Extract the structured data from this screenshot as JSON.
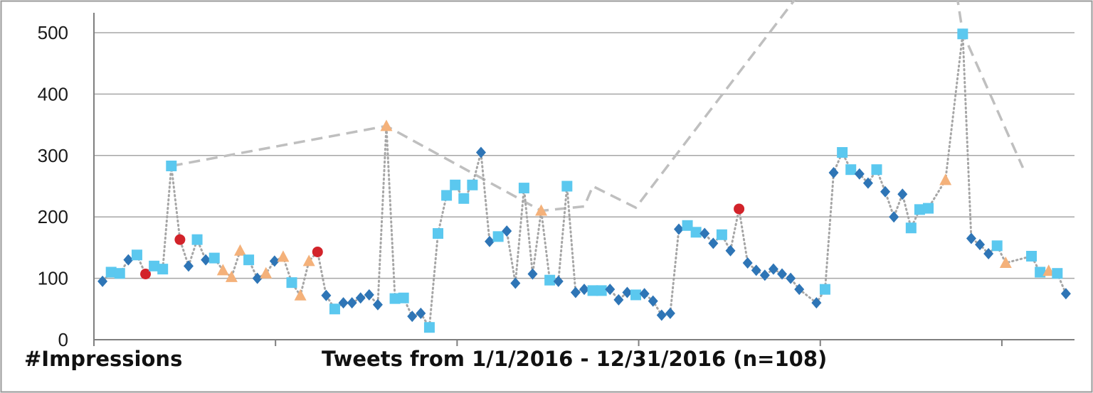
{
  "chart_data": {
    "type": "line",
    "ylabel": "#Impressions",
    "xlabel": "Tweets from 1/1/2016 - 12/31/2016 (n=108)",
    "ylim": [
      0,
      550
    ],
    "yticks": [
      0,
      100,
      200,
      300,
      400,
      500
    ],
    "grid": "horizontal",
    "colors": {
      "diamond": "#2e75b6",
      "square": "#5bc8ef",
      "triangle": "#f4b17a",
      "circle": "#d2232a",
      "dotted_line": "#a6a6a6",
      "dashed_line": "#bfbfbf",
      "grid": "#a6a6a6",
      "axis": "#7f7f7f"
    },
    "series": [
      {
        "marker": "square",
        "points": [
          [
            1,
            110
          ],
          [
            2,
            108
          ],
          [
            4,
            138
          ],
          [
            6,
            120
          ],
          [
            7,
            115
          ],
          [
            8,
            283
          ],
          [
            11,
            163
          ],
          [
            13,
            133
          ],
          [
            17,
            130
          ],
          [
            22,
            93
          ],
          [
            27,
            50
          ],
          [
            34,
            67
          ],
          [
            35,
            68
          ],
          [
            38,
            20
          ],
          [
            39,
            173
          ],
          [
            40,
            235
          ],
          [
            41,
            252
          ],
          [
            42,
            230
          ],
          [
            43,
            252
          ],
          [
            46,
            168
          ],
          [
            49,
            247
          ],
          [
            52,
            97
          ],
          [
            54,
            250
          ],
          [
            57,
            80
          ],
          [
            58,
            80
          ],
          [
            62,
            73
          ],
          [
            68,
            186
          ],
          [
            69,
            175
          ],
          [
            72,
            171
          ],
          [
            84,
            82
          ],
          [
            86,
            305
          ],
          [
            87,
            277
          ],
          [
            90,
            277
          ],
          [
            94,
            182
          ],
          [
            95,
            212
          ],
          [
            96,
            214
          ],
          [
            100,
            498
          ],
          [
            104,
            153
          ],
          [
            108,
            136
          ],
          [
            109,
            110
          ],
          [
            111,
            108
          ]
        ]
      },
      {
        "marker": "diamond",
        "points": [
          [
            0,
            95
          ],
          [
            3,
            130
          ],
          [
            10,
            120
          ],
          [
            12,
            130
          ],
          [
            18,
            100
          ],
          [
            20,
            128
          ],
          [
            26,
            72
          ],
          [
            28,
            60
          ],
          [
            29,
            60
          ],
          [
            30,
            68
          ],
          [
            31,
            73
          ],
          [
            32,
            57
          ],
          [
            36,
            38
          ],
          [
            37,
            43
          ],
          [
            44,
            305
          ],
          [
            45,
            160
          ],
          [
            47,
            177
          ],
          [
            48,
            92
          ],
          [
            50,
            107
          ],
          [
            53,
            95
          ],
          [
            55,
            77
          ],
          [
            56,
            82
          ],
          [
            59,
            82
          ],
          [
            60,
            65
          ],
          [
            61,
            77
          ],
          [
            63,
            75
          ],
          [
            64,
            63
          ],
          [
            65,
            40
          ],
          [
            66,
            43
          ],
          [
            67,
            180
          ],
          [
            70,
            173
          ],
          [
            71,
            157
          ],
          [
            73,
            145
          ],
          [
            75,
            125
          ],
          [
            76,
            113
          ],
          [
            77,
            105
          ],
          [
            78,
            115
          ],
          [
            79,
            107
          ],
          [
            80,
            100
          ],
          [
            81,
            82
          ],
          [
            83,
            60
          ],
          [
            85,
            272
          ],
          [
            88,
            270
          ],
          [
            89,
            255
          ],
          [
            91,
            241
          ],
          [
            92,
            200
          ],
          [
            93,
            237
          ],
          [
            101,
            165
          ],
          [
            102,
            155
          ],
          [
            103,
            140
          ],
          [
            112,
            75
          ]
        ]
      },
      {
        "marker": "triangle",
        "points": [
          [
            14,
            113
          ],
          [
            15,
            102
          ],
          [
            16,
            145
          ],
          [
            19,
            108
          ],
          [
            21,
            135
          ],
          [
            23,
            72
          ],
          [
            24,
            128
          ],
          [
            33,
            348
          ],
          [
            51,
            210
          ],
          [
            98,
            260
          ],
          [
            105,
            125
          ],
          [
            110,
            112
          ]
        ]
      },
      {
        "marker": "circle",
        "points": [
          [
            5,
            107
          ],
          [
            9,
            163
          ],
          [
            25,
            143
          ],
          [
            74,
            213
          ]
        ]
      }
    ],
    "trend_line": {
      "style": "dashed",
      "points": [
        [
          8,
          283
        ],
        [
          33,
          348
        ],
        [
          51,
          210
        ],
        [
          56,
          217
        ],
        [
          57,
          250
        ],
        [
          62,
          215
        ],
        [
          83,
          600
        ],
        [
          99,
          590
        ],
        [
          100,
          500
        ],
        [
          107,
          280
        ]
      ]
    },
    "x_index_range": [
      -1,
      113
    ]
  }
}
